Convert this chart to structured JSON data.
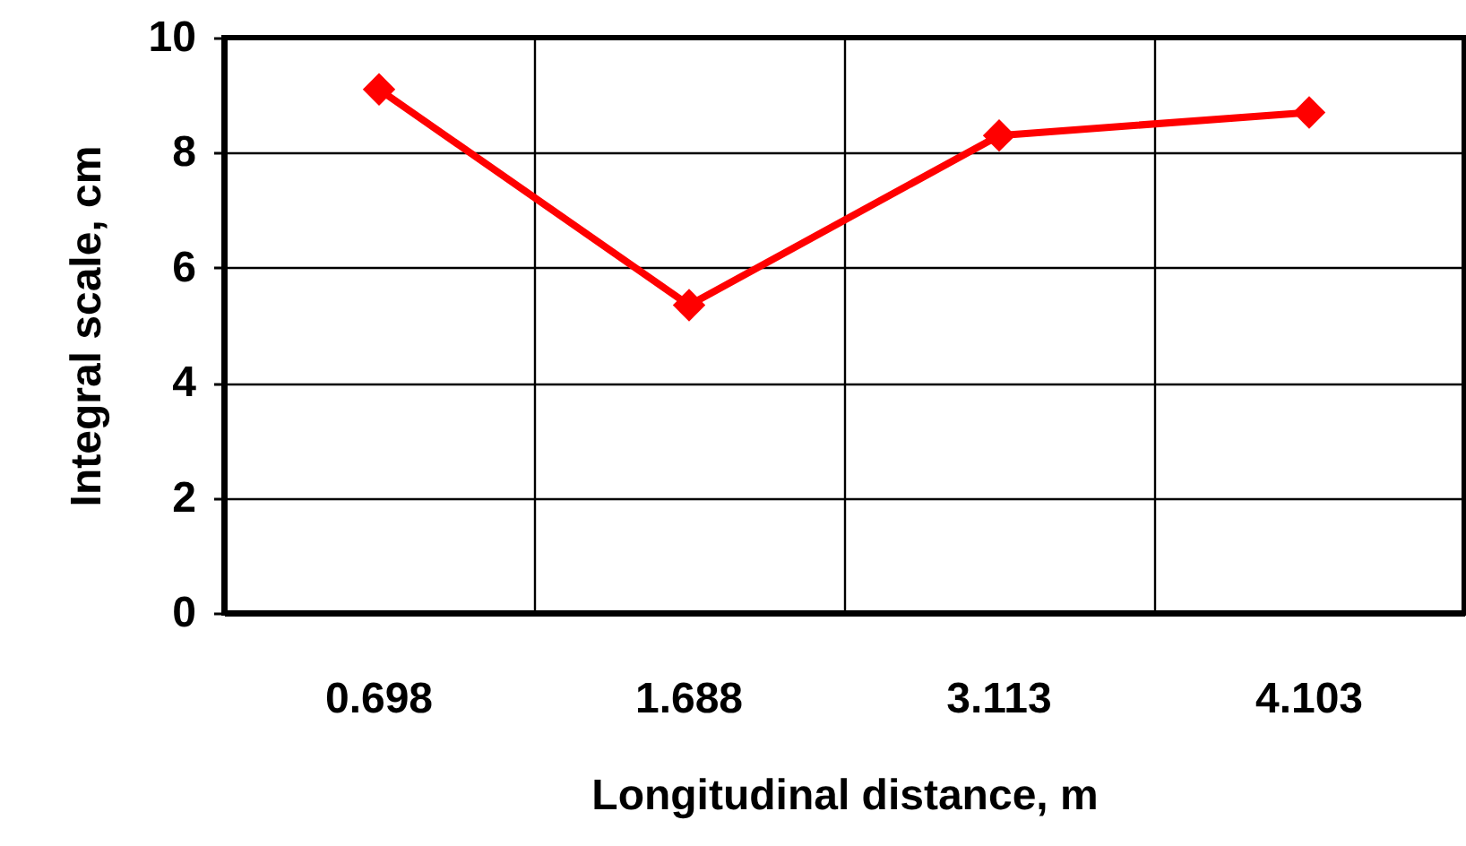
{
  "chart_data": {
    "type": "line",
    "xlabel": "Longitudinal distance, m",
    "ylabel": "Integral scale, cm",
    "categories": [
      "0.698",
      "1.688",
      "3.113",
      "4.103"
    ],
    "series": [
      {
        "color": "#ff0000",
        "values": [
          9.1,
          5.35,
          8.3,
          8.7
        ]
      }
    ],
    "ylim": [
      0,
      10
    ],
    "yticks": [
      0,
      2,
      4,
      6,
      8,
      10
    ],
    "grid": true,
    "marker": "diamond",
    "line_style": "solid"
  }
}
